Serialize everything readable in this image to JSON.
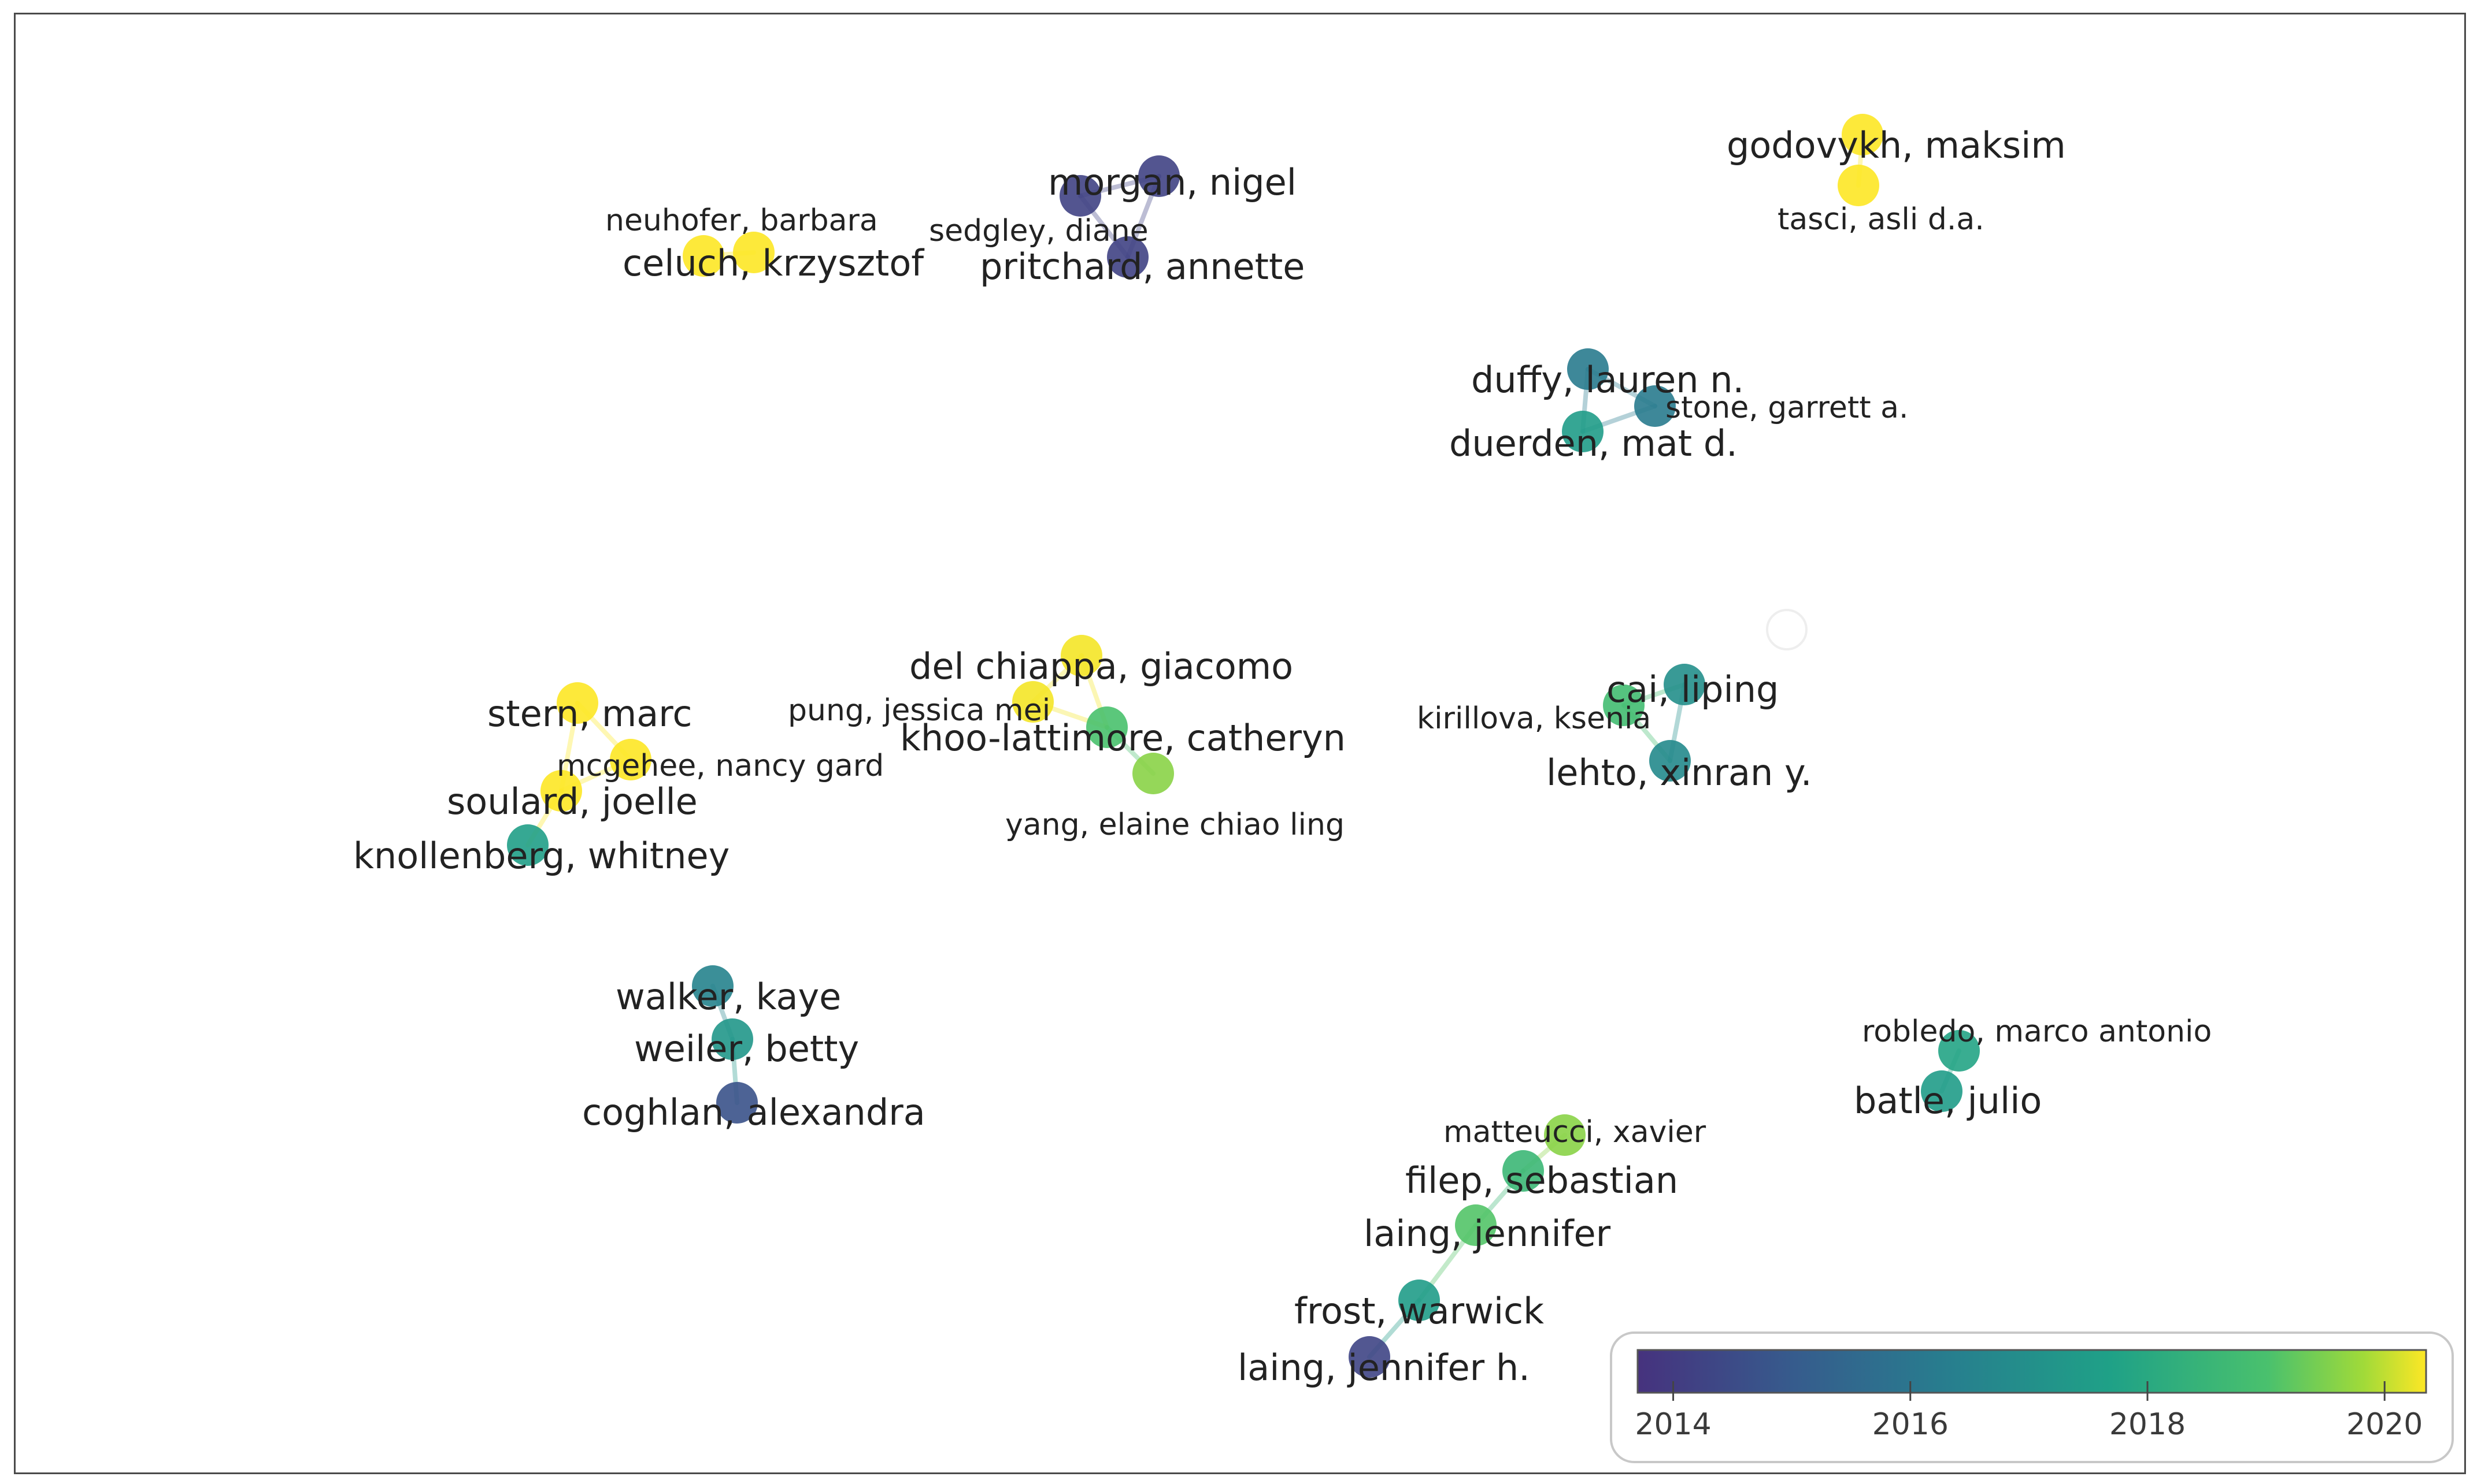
{
  "network": {
    "authors": [
      {
        "id": "godovykh",
        "label": "godovykh, maksim",
        "year": 2020.5
      },
      {
        "id": "tasci",
        "label": "tasci, asli d.a.",
        "year": 2020.5
      },
      {
        "id": "neuhofer",
        "label": "neuhofer, barbara",
        "year": 2020.5
      },
      {
        "id": "celuch",
        "label": "celuch, krzysztof",
        "year": 2020.5
      },
      {
        "id": "morgan",
        "label": "morgan, nigel",
        "year": 2014.2
      },
      {
        "id": "sedgley",
        "label": "sedgley, diane",
        "year": 2014.2
      },
      {
        "id": "pritchard",
        "label": "pritchard, annette",
        "year": 2014.2
      },
      {
        "id": "duffy",
        "label": "duffy, lauren n.",
        "year": 2016.2
      },
      {
        "id": "stone",
        "label": "stone, garrett a.",
        "year": 2016.2
      },
      {
        "id": "duerden",
        "label": "duerden, mat d.",
        "year": 2017.5
      },
      {
        "id": "del_chiappa",
        "label": "del chiappa, giacomo",
        "year": 2020.3
      },
      {
        "id": "pung",
        "label": "pung, jessica mei",
        "year": 2020.3
      },
      {
        "id": "khoo",
        "label": "khoo-lattimore, catheryn",
        "year": 2019.0
      },
      {
        "id": "yang",
        "label": "yang, elaine chiao ling",
        "year": 2019.6
      },
      {
        "id": "stern",
        "label": "stern, marc",
        "year": 2020.4
      },
      {
        "id": "mcgehee",
        "label": "mcgehee, nancy gard",
        "year": 2020.4
      },
      {
        "id": "soulard",
        "label": "soulard, joelle",
        "year": 2020.4
      },
      {
        "id": "knollenberg",
        "label": "knollenberg, whitney",
        "year": 2017.6
      },
      {
        "id": "kirillova",
        "label": "kirillova, ksenia",
        "year": 2018.8
      },
      {
        "id": "cai",
        "label": "cai, liping",
        "year": 2017.0
      },
      {
        "id": "lehto",
        "label": "lehto, xinran y.",
        "year": 2016.8
      },
      {
        "id": "walker",
        "label": "walker, kaye",
        "year": 2016.5
      },
      {
        "id": "weiler",
        "label": "weiler, betty",
        "year": 2017.3
      },
      {
        "id": "coghlan",
        "label": "coghlan, alexandra",
        "year": 2014.7
      },
      {
        "id": "robledo",
        "label": "robledo, marco antonio",
        "year": 2017.8
      },
      {
        "id": "batle",
        "label": "batle, julio",
        "year": 2017.5
      },
      {
        "id": "matteucci",
        "label": "matteucci, xavier",
        "year": 2019.6
      },
      {
        "id": "filep",
        "label": "filep, sebastian",
        "year": 2018.6
      },
      {
        "id": "laing_j",
        "label": "laing, jennifer",
        "year": 2019.1
      },
      {
        "id": "frost",
        "label": "frost, warwick",
        "year": 2017.5
      },
      {
        "id": "laing_jh",
        "label": "laing, jennifer h.",
        "year": 2014.3
      }
    ],
    "links": [
      [
        "godovykh",
        "tasci"
      ],
      [
        "neuhofer",
        "celuch"
      ],
      [
        "morgan",
        "sedgley"
      ],
      [
        "morgan",
        "pritchard"
      ],
      [
        "sedgley",
        "pritchard"
      ],
      [
        "duffy",
        "stone"
      ],
      [
        "duffy",
        "duerden"
      ],
      [
        "stone",
        "duerden"
      ],
      [
        "del_chiappa",
        "pung"
      ],
      [
        "del_chiappa",
        "khoo"
      ],
      [
        "pung",
        "khoo"
      ],
      [
        "khoo",
        "yang"
      ],
      [
        "stern",
        "mcgehee"
      ],
      [
        "stern",
        "soulard"
      ],
      [
        "mcgehee",
        "soulard"
      ],
      [
        "soulard",
        "knollenberg"
      ],
      [
        "kirillova",
        "cai"
      ],
      [
        "kirillova",
        "lehto"
      ],
      [
        "cai",
        "lehto"
      ],
      [
        "walker",
        "weiler"
      ],
      [
        "weiler",
        "coghlan"
      ],
      [
        "robledo",
        "batle"
      ],
      [
        "matteucci",
        "filep"
      ],
      [
        "filep",
        "laing_j"
      ],
      [
        "laing_j",
        "frost"
      ],
      [
        "frost",
        "laing_jh"
      ]
    ]
  },
  "colorbar": {
    "range": [
      2013.7,
      2020.35
    ],
    "ticks": [
      "2014",
      "2016",
      "2018",
      "2020"
    ],
    "colors": [
      "#440154",
      "#3b528b",
      "#21918c",
      "#5ec962",
      "#fde725"
    ]
  }
}
